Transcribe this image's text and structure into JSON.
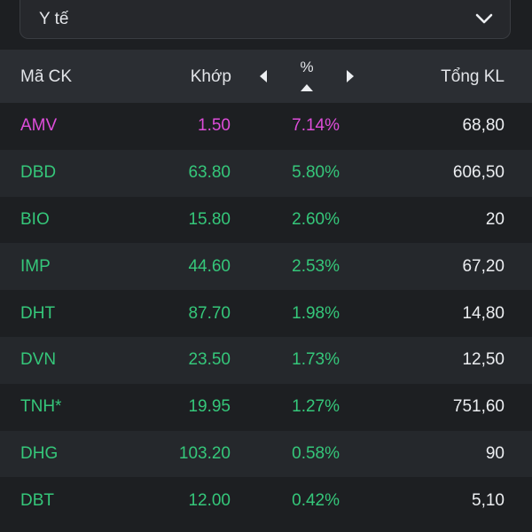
{
  "filter": {
    "industry_label": "Y tế"
  },
  "table": {
    "headers": {
      "symbol": "Mã CK",
      "price": "Khớp",
      "percent": "%",
      "volume": "Tổng KL"
    },
    "rows": [
      {
        "symbol": "AMV",
        "price": "1.50",
        "percent": "7.14%",
        "volume": "68,80",
        "color": "#dd4dd9"
      },
      {
        "symbol": "DBD",
        "price": "63.80",
        "percent": "5.80%",
        "volume": "606,50",
        "color": "#35c77a"
      },
      {
        "symbol": "BIO",
        "price": "15.80",
        "percent": "2.60%",
        "volume": "20",
        "color": "#35c77a"
      },
      {
        "symbol": "IMP",
        "price": "44.60",
        "percent": "2.53%",
        "volume": "67,20",
        "color": "#35c77a"
      },
      {
        "symbol": "DHT",
        "price": "87.70",
        "percent": "1.98%",
        "volume": "14,80",
        "color": "#35c77a"
      },
      {
        "symbol": "DVN",
        "price": "23.50",
        "percent": "1.73%",
        "volume": "12,50",
        "color": "#35c77a"
      },
      {
        "symbol": "TNH*",
        "price": "19.95",
        "percent": "1.27%",
        "volume": "751,60",
        "color": "#35c77a"
      },
      {
        "symbol": "DHG",
        "price": "103.20",
        "percent": "0.58%",
        "volume": "90",
        "color": "#35c77a"
      },
      {
        "symbol": "DBT",
        "price": "12.00",
        "percent": "0.42%",
        "volume": "5,10",
        "color": "#35c77a"
      }
    ]
  },
  "icons": {
    "dropdown": "chevron-down-icon",
    "prev_column": "caret-left-icon",
    "next_column": "caret-right-icon",
    "sort": "sort-up-icon"
  },
  "colors": {
    "ceiling": "#dd4dd9",
    "up": "#35c77a",
    "background": "#1d1f22",
    "header_bg": "#2b2e33"
  }
}
